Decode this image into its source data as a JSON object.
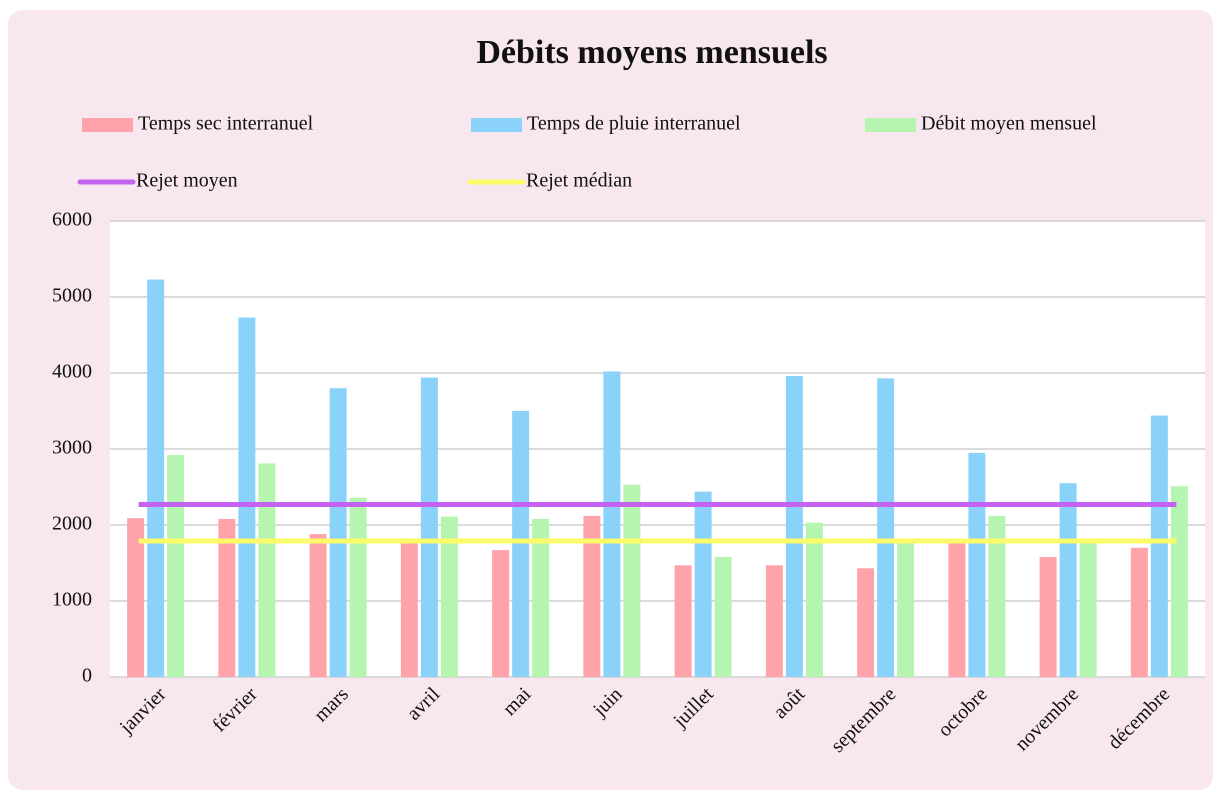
{
  "chart_data": {
    "type": "bar",
    "title": "Débits moyens mensuels",
    "categories": [
      "janvier",
      "février",
      "mars",
      "avril",
      "mai",
      "juin",
      "juillet",
      "août",
      "septembre",
      "octobre",
      "novembre",
      "décembre"
    ],
    "series": [
      {
        "name": "Temps sec interranuel",
        "type": "bar",
        "color": "#ffa3aa",
        "values": [
          2090,
          2080,
          1880,
          1790,
          1670,
          2120,
          1470,
          1470,
          1430,
          1790,
          1580,
          1700
        ]
      },
      {
        "name": "Temps de pluie interranuel",
        "type": "bar",
        "color": "#8ad2fa",
        "values": [
          5230,
          4730,
          3800,
          3940,
          3500,
          4020,
          2440,
          3960,
          3930,
          2950,
          2550,
          3440
        ]
      },
      {
        "name": "Débit moyen mensuel",
        "type": "bar",
        "color": "#b5f5b0",
        "values": [
          2920,
          2810,
          2360,
          2110,
          2080,
          2530,
          1580,
          2030,
          1780,
          2120,
          1790,
          2510
        ]
      },
      {
        "name": "Rejet moyen",
        "type": "line",
        "color": "#c462f2",
        "values": [
          2270,
          2270,
          2270,
          2270,
          2270,
          2270,
          2270,
          2270,
          2270,
          2270,
          2270,
          2270
        ]
      },
      {
        "name": "Rejet médian",
        "type": "line",
        "color": "#fbfb6a",
        "values": [
          1790,
          1790,
          1790,
          1790,
          1790,
          1790,
          1790,
          1790,
          1790,
          1790,
          1790,
          1790
        ]
      }
    ],
    "ylim": [
      0,
      6000
    ],
    "yticks": [
      0,
      1000,
      2000,
      3000,
      4000,
      5000,
      6000
    ],
    "grid": true
  }
}
